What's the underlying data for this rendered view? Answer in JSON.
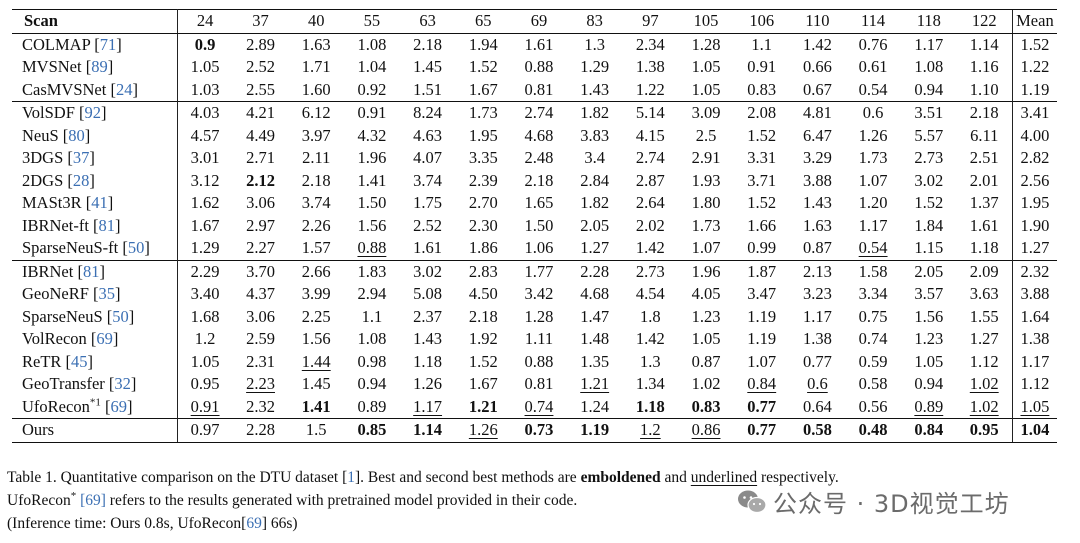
{
  "table": {
    "scan_header": "Scan",
    "columns": [
      "24",
      "37",
      "40",
      "55",
      "63",
      "65",
      "69",
      "83",
      "97",
      "105",
      "106",
      "110",
      "114",
      "118",
      "122"
    ],
    "mean_header": "Mean",
    "groups": [
      {
        "rows": [
          {
            "name": "COLMAP",
            "ref": "71",
            "values": [
              "0.9",
              "2.89",
              "1.63",
              "1.08",
              "2.18",
              "1.94",
              "1.61",
              "1.3",
              "2.34",
              "1.28",
              "1.1",
              "1.42",
              "0.76",
              "1.17",
              "1.14"
            ],
            "mean": "1.52",
            "bold": [
              0
            ],
            "underline": []
          },
          {
            "name": "MVSNet",
            "ref": "89",
            "values": [
              "1.05",
              "2.52",
              "1.71",
              "1.04",
              "1.45",
              "1.52",
              "0.88",
              "1.29",
              "1.38",
              "1.05",
              "0.91",
              "0.66",
              "0.61",
              "1.08",
              "1.16"
            ],
            "mean": "1.22",
            "bold": [],
            "underline": []
          },
          {
            "name": "CasMVSNet",
            "ref": "24",
            "values": [
              "1.03",
              "2.55",
              "1.60",
              "0.92",
              "1.51",
              "1.67",
              "0.81",
              "1.43",
              "1.22",
              "1.05",
              "0.83",
              "0.67",
              "0.54",
              "0.94",
              "1.10"
            ],
            "mean": "1.19",
            "bold": [],
            "underline": []
          }
        ]
      },
      {
        "rows": [
          {
            "name": "VolSDF",
            "ref": "92",
            "values": [
              "4.03",
              "4.21",
              "6.12",
              "0.91",
              "8.24",
              "1.73",
              "2.74",
              "1.82",
              "5.14",
              "3.09",
              "2.08",
              "4.81",
              "0.6",
              "3.51",
              "2.18"
            ],
            "mean": "3.41",
            "bold": [],
            "underline": []
          },
          {
            "name": "NeuS",
            "ref": "80",
            "values": [
              "4.57",
              "4.49",
              "3.97",
              "4.32",
              "4.63",
              "1.95",
              "4.68",
              "3.83",
              "4.15",
              "2.5",
              "1.52",
              "6.47",
              "1.26",
              "5.57",
              "6.11"
            ],
            "mean": "4.00",
            "bold": [],
            "underline": []
          },
          {
            "name": "3DGS",
            "ref": "37",
            "values": [
              "3.01",
              "2.71",
              "2.11",
              "1.96",
              "4.07",
              "3.35",
              "2.48",
              "3.4",
              "2.74",
              "2.91",
              "3.31",
              "3.29",
              "1.73",
              "2.73",
              "2.51"
            ],
            "mean": "2.82",
            "bold": [],
            "underline": []
          },
          {
            "name": "2DGS",
            "ref": "28",
            "values": [
              "3.12",
              "2.12",
              "2.18",
              "1.41",
              "3.74",
              "2.39",
              "2.18",
              "2.84",
              "2.87",
              "1.93",
              "3.71",
              "3.88",
              "1.07",
              "3.02",
              "2.01"
            ],
            "mean": "2.56",
            "bold": [
              1
            ],
            "underline": []
          },
          {
            "name": "MASt3R",
            "ref": "41",
            "values": [
              "1.62",
              "3.06",
              "3.74",
              "1.50",
              "1.75",
              "2.70",
              "1.65",
              "1.82",
              "2.64",
              "1.80",
              "1.52",
              "1.43",
              "1.20",
              "1.52",
              "1.37"
            ],
            "mean": "1.95",
            "bold": [],
            "underline": []
          },
          {
            "name": "IBRNet-ft",
            "ref": "81",
            "values": [
              "1.67",
              "2.97",
              "2.26",
              "1.56",
              "2.52",
              "2.30",
              "1.50",
              "2.05",
              "2.02",
              "1.73",
              "1.66",
              "1.63",
              "1.17",
              "1.84",
              "1.61"
            ],
            "mean": "1.90",
            "bold": [],
            "underline": []
          },
          {
            "name": "SparseNeuS-ft",
            "ref": "50",
            "values": [
              "1.29",
              "2.27",
              "1.57",
              "0.88",
              "1.61",
              "1.86",
              "1.06",
              "1.27",
              "1.42",
              "1.07",
              "0.99",
              "0.87",
              "0.54",
              "1.15",
              "1.18"
            ],
            "mean": "1.27",
            "bold": [],
            "underline": [
              3,
              12
            ]
          }
        ]
      },
      {
        "rows": [
          {
            "name": "IBRNet",
            "ref": "81",
            "values": [
              "2.29",
              "3.70",
              "2.66",
              "1.83",
              "3.02",
              "2.83",
              "1.77",
              "2.28",
              "2.73",
              "1.96",
              "1.87",
              "2.13",
              "1.58",
              "2.05",
              "2.09"
            ],
            "mean": "2.32",
            "bold": [],
            "underline": []
          },
          {
            "name": "GeoNeRF",
            "ref": "35",
            "values": [
              "3.40",
              "4.37",
              "3.99",
              "2.94",
              "5.08",
              "4.50",
              "3.42",
              "4.68",
              "4.54",
              "4.05",
              "3.47",
              "3.23",
              "3.34",
              "3.57",
              "3.63"
            ],
            "mean": "3.88",
            "bold": [],
            "underline": []
          },
          {
            "name": "SparseNeuS",
            "ref": "50",
            "values": [
              "1.68",
              "3.06",
              "2.25",
              "1.1",
              "2.37",
              "2.18",
              "1.28",
              "1.47",
              "1.8",
              "1.23",
              "1.19",
              "1.17",
              "0.75",
              "1.56",
              "1.55"
            ],
            "mean": "1.64",
            "bold": [],
            "underline": []
          },
          {
            "name": "VolRecon",
            "ref": "69",
            "values": [
              "1.2",
              "2.59",
              "1.56",
              "1.08",
              "1.43",
              "1.92",
              "1.11",
              "1.48",
              "1.42",
              "1.05",
              "1.19",
              "1.38",
              "0.74",
              "1.23",
              "1.27"
            ],
            "mean": "1.38",
            "bold": [],
            "underline": []
          },
          {
            "name": "ReTR",
            "ref": "45",
            "values": [
              "1.05",
              "2.31",
              "1.44",
              "0.98",
              "1.18",
              "1.52",
              "0.88",
              "1.35",
              "1.3",
              "0.87",
              "1.07",
              "0.77",
              "0.59",
              "1.05",
              "1.12"
            ],
            "mean": "1.17",
            "bold": [],
            "underline": [
              2
            ]
          },
          {
            "name": "GeoTransfer",
            "ref": "32",
            "values": [
              "0.95",
              "2.23",
              "1.45",
              "0.94",
              "1.26",
              "1.67",
              "0.81",
              "1.21",
              "1.34",
              "1.02",
              "0.84",
              "0.6",
              "0.58",
              "0.94",
              "1.02"
            ],
            "mean": "1.12",
            "bold": [],
            "underline": [
              1,
              7,
              10,
              11,
              14
            ]
          },
          {
            "name": "UfoRecon",
            "sup": "*1",
            "ref": "69",
            "values": [
              "0.91",
              "2.32",
              "1.41",
              "0.89",
              "1.17",
              "1.21",
              "0.74",
              "1.24",
              "1.18",
              "0.83",
              "0.77",
              "0.64",
              "0.56",
              "0.89",
              "1.02"
            ],
            "mean": "1.05",
            "bold": [
              2,
              5,
              8,
              9,
              10
            ],
            "underline": [
              0,
              4,
              6,
              13,
              14
            ],
            "mean_underline": true
          }
        ]
      },
      {
        "rows": [
          {
            "name": "Ours",
            "ref": "",
            "values": [
              "0.97",
              "2.28",
              "1.5",
              "0.85",
              "1.14",
              "1.26",
              "0.73",
              "1.19",
              "1.2",
              "0.86",
              "0.77",
              "0.58",
              "0.48",
              "0.84",
              "0.95"
            ],
            "mean": "1.04",
            "bold": [
              3,
              4,
              6,
              7,
              10,
              11,
              12,
              13,
              14
            ],
            "underline": [
              5,
              8,
              9
            ],
            "mean_bold": true
          }
        ]
      }
    ]
  },
  "caption": {
    "line1_a": "Table 1. Quantitative comparison on the DTU dataset [",
    "line1_ref": "1",
    "line1_b": "].  Best and second best methods are ",
    "line1_bold": "emboldened",
    "line1_c": " and ",
    "line1_underline": "underlined",
    "line1_d": " respectively.",
    "line2_a": "UfoRecon",
    "line2_sup": "*",
    "line2_ref": "[69]",
    "line2_b": " refers to the results generated with pretrained model provided in their code.",
    "line3_a": "(Inference time: Ours 0.8s, UfoRecon[",
    "line3_ref": "69",
    "line3_b": "] 66s)"
  },
  "watermark": {
    "text": "公众号 · 3D视觉工坊",
    "icon": "wechat-icon"
  }
}
